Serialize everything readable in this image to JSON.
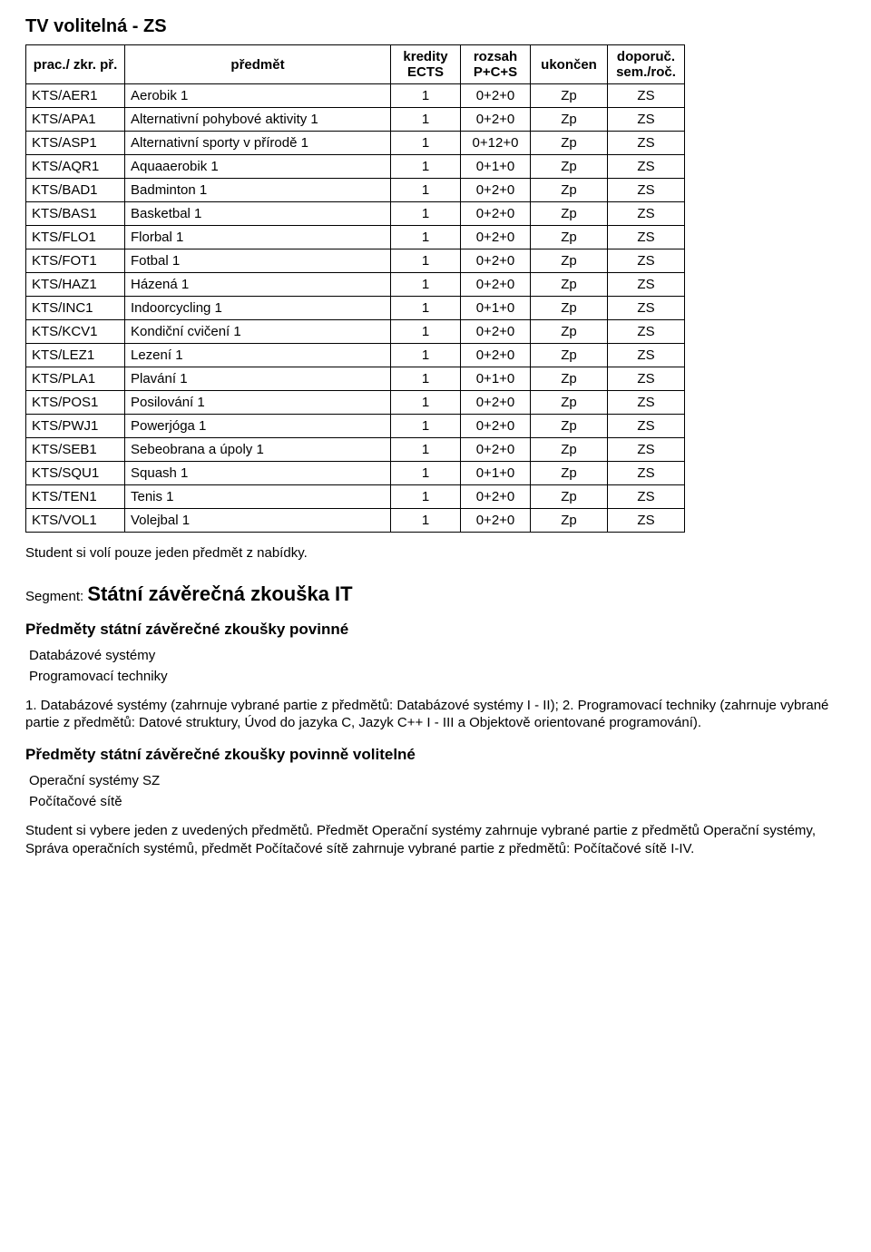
{
  "section_title": "TV volitelná - ZS",
  "table": {
    "headers": {
      "code": "prac./\nzkr. př.",
      "name": "předmět",
      "credits": "kredity\nECTS",
      "range": "rozsah\nP+C+S",
      "end": "ukončen",
      "sem": "doporuč.\nsem./roč."
    },
    "rows": [
      {
        "code": "KTS/AER1",
        "name": "Aerobik 1",
        "credits": "1",
        "range": "0+2+0",
        "end": "Zp",
        "sem": "ZS"
      },
      {
        "code": "KTS/APA1",
        "name": "Alternativní pohybové aktivity 1",
        "credits": "1",
        "range": "0+2+0",
        "end": "Zp",
        "sem": "ZS"
      },
      {
        "code": "KTS/ASP1",
        "name": "Alternativní sporty v přírodě 1",
        "credits": "1",
        "range": "0+12+0",
        "end": "Zp",
        "sem": "ZS"
      },
      {
        "code": "KTS/AQR1",
        "name": "Aquaaerobik 1",
        "credits": "1",
        "range": "0+1+0",
        "end": "Zp",
        "sem": "ZS"
      },
      {
        "code": "KTS/BAD1",
        "name": "Badminton 1",
        "credits": "1",
        "range": "0+2+0",
        "end": "Zp",
        "sem": "ZS"
      },
      {
        "code": "KTS/BAS1",
        "name": "Basketbal 1",
        "credits": "1",
        "range": "0+2+0",
        "end": "Zp",
        "sem": "ZS"
      },
      {
        "code": "KTS/FLO1",
        "name": "Florbal 1",
        "credits": "1",
        "range": "0+2+0",
        "end": "Zp",
        "sem": "ZS"
      },
      {
        "code": "KTS/FOT1",
        "name": "Fotbal 1",
        "credits": "1",
        "range": "0+2+0",
        "end": "Zp",
        "sem": "ZS"
      },
      {
        "code": "KTS/HAZ1",
        "name": "Házená 1",
        "credits": "1",
        "range": "0+2+0",
        "end": "Zp",
        "sem": "ZS"
      },
      {
        "code": "KTS/INC1",
        "name": "Indoorcycling 1",
        "credits": "1",
        "range": "0+1+0",
        "end": "Zp",
        "sem": "ZS"
      },
      {
        "code": "KTS/KCV1",
        "name": "Kondiční cvičení 1",
        "credits": "1",
        "range": "0+2+0",
        "end": "Zp",
        "sem": "ZS"
      },
      {
        "code": "KTS/LEZ1",
        "name": "Lezení 1",
        "credits": "1",
        "range": "0+2+0",
        "end": "Zp",
        "sem": "ZS"
      },
      {
        "code": "KTS/PLA1",
        "name": "Plavání 1",
        "credits": "1",
        "range": "0+1+0",
        "end": "Zp",
        "sem": "ZS"
      },
      {
        "code": "KTS/POS1",
        "name": "Posilování 1",
        "credits": "1",
        "range": "0+2+0",
        "end": "Zp",
        "sem": "ZS"
      },
      {
        "code": "KTS/PWJ1",
        "name": "Powerjóga 1",
        "credits": "1",
        "range": "0+2+0",
        "end": "Zp",
        "sem": "ZS"
      },
      {
        "code": "KTS/SEB1",
        "name": "Sebeobrana a úpoly 1",
        "credits": "1",
        "range": "0+2+0",
        "end": "Zp",
        "sem": "ZS"
      },
      {
        "code": "KTS/SQU1",
        "name": "Squash 1",
        "credits": "1",
        "range": "0+1+0",
        "end": "Zp",
        "sem": "ZS"
      },
      {
        "code": "KTS/TEN1",
        "name": "Tenis 1",
        "credits": "1",
        "range": "0+2+0",
        "end": "Zp",
        "sem": "ZS"
      },
      {
        "code": "KTS/VOL1",
        "name": "Volejbal 1",
        "credits": "1",
        "range": "0+2+0",
        "end": "Zp",
        "sem": "ZS"
      }
    ]
  },
  "note1": "Student si volí pouze jeden předmět z nabídky.",
  "segment_prefix": "Segment: ",
  "segment_name": "Státní závěrečná zkouška IT",
  "sub1": "Předměty státní závěrečné zkoušky povinné",
  "sub1_items": [
    "Databázové systémy",
    "Programovací techniky"
  ],
  "para1": "1. Databázové systémy (zahrnuje vybrané partie z předmětů: Databázové systémy I - II); 2. Programovací techniky (zahrnuje vybrané partie z předmětů: Datové struktury, Úvod do jazyka C, Jazyk C++ I - III a Objektově orientované programování).",
  "sub2": "Předměty státní závěrečné zkoušky povinně volitelné",
  "sub2_items": [
    "Operační systémy SZ",
    "Počítačové sítě"
  ],
  "para2": "Student si vybere jeden z uvedených předmětů. Předmět Operační systémy zahrnuje vybrané partie z předmětů Operační systémy, Správa operačních systémů, předmět Počítačové sítě zahrnuje vybrané partie z předmětů: Počítačové sítě I-IV."
}
